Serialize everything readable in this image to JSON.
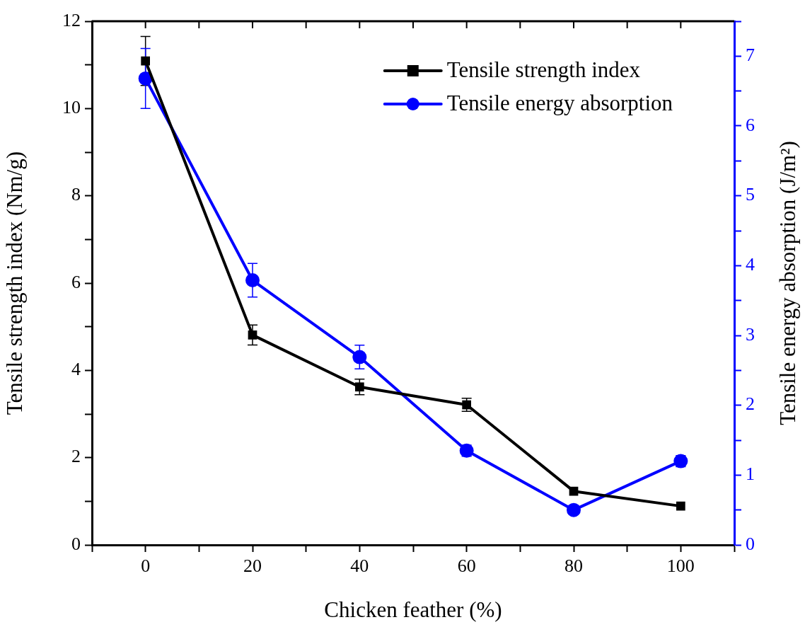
{
  "chart_data": {
    "type": "line",
    "xlabel": "Chicken feather (%)",
    "ylabel": "Tensile strength index (Nm/g)",
    "y2label": "Tensile energy absorption (J/m²)",
    "x": [
      0,
      20,
      40,
      60,
      80,
      100
    ],
    "series": [
      {
        "name": "Tensile strength index",
        "color": "#000000",
        "marker": "square",
        "values": [
          11.09,
          4.81,
          3.62,
          3.21,
          1.23,
          0.89
        ],
        "errors": [
          0.56,
          0.23,
          0.18,
          0.15,
          null,
          null
        ]
      },
      {
        "name": "Tensile energy absorption",
        "color": "#0000ff",
        "marker": "circle",
        "axis": "y2",
        "values": [
          6.68,
          3.79,
          2.69,
          1.35,
          0.5,
          1.2
        ],
        "errors": [
          0.43,
          0.24,
          0.17,
          0.08,
          null,
          0.08
        ]
      }
    ],
    "xlim": [
      -10,
      110
    ],
    "xticks": [
      {
        "value": -10,
        "label": null
      },
      0,
      {
        "value": 10,
        "label": null
      },
      20,
      {
        "value": 30,
        "label": null
      },
      40,
      {
        "value": 50,
        "label": null
      },
      60,
      {
        "value": 70,
        "label": null
      },
      80,
      {
        "value": 90,
        "label": null
      },
      100,
      {
        "value": 110,
        "label": null
      }
    ],
    "ylim": [
      0,
      12
    ],
    "yticks": [
      0,
      {
        "value": 1,
        "label": null
      },
      2,
      {
        "value": 3,
        "label": null
      },
      4,
      {
        "value": 5,
        "label": null
      },
      6,
      {
        "value": 7,
        "label": null
      },
      8,
      {
        "value": 9,
        "label": null
      },
      10,
      {
        "value": 11,
        "label": null
      },
      12
    ],
    "y2lim": [
      0,
      7.5
    ],
    "y2ticks": [
      0,
      {
        "value": 0.5,
        "label": null
      },
      1,
      {
        "value": 1.5,
        "label": null
      },
      2,
      {
        "value": 2.5,
        "label": null
      },
      3,
      {
        "value": 3.5,
        "label": null
      },
      4,
      {
        "value": 4.5,
        "label": null
      },
      5,
      {
        "value": 5.5,
        "label": null
      },
      6,
      {
        "value": 6.5,
        "label": null
      },
      7,
      {
        "value": 7.5,
        "label": null
      }
    ],
    "legend": "top right",
    "grid": false,
    "line_style": "solid"
  }
}
